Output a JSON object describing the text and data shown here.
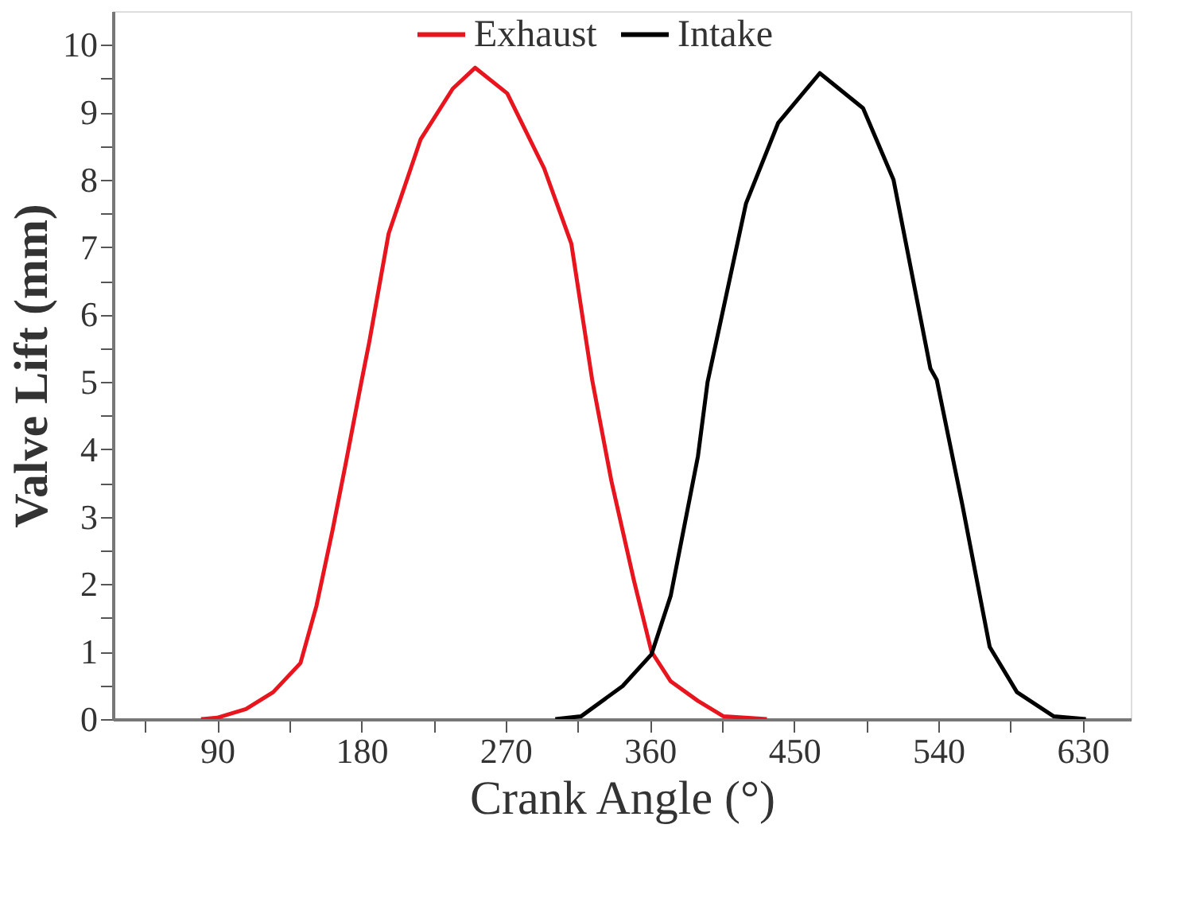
{
  "chart_data": {
    "type": "line",
    "xlabel": "Crank Angle (°)",
    "ylabel": "Valve Lift (mm)",
    "xlim": [
      25,
      660
    ],
    "ylim": [
      0,
      10.5
    ],
    "xticks": [
      {
        "value": 45,
        "label": null
      },
      90,
      {
        "value": 135,
        "label": null
      },
      180,
      {
        "value": 225,
        "label": null
      },
      270,
      {
        "value": 315,
        "label": null
      },
      360,
      {
        "value": 405,
        "label": null
      },
      450,
      {
        "value": 495,
        "label": null
      },
      540,
      {
        "value": 585,
        "label": null
      },
      630
    ],
    "yticks": [
      0,
      {
        "value": 0.5,
        "label": null
      },
      1,
      {
        "value": 1.5,
        "label": null
      },
      2,
      {
        "value": 2.5,
        "label": null
      },
      3,
      {
        "value": 3.5,
        "label": null
      },
      4,
      {
        "value": 4.5,
        "label": null
      },
      5,
      {
        "value": 5.5,
        "label": null
      },
      6,
      {
        "value": 6.5,
        "label": null
      },
      7,
      {
        "value": 7.5,
        "label": null
      },
      8,
      {
        "value": 8.5,
        "label": null
      },
      9,
      {
        "value": 9.5,
        "label": null
      },
      10
    ],
    "grid": false,
    "legend": "top",
    "marker": "none",
    "line_style": "solid",
    "series": [
      {
        "name": "Exhaust",
        "color": "#e8141e",
        "x": [
          80,
          90,
          108,
          125,
          142,
          152,
          162,
          170,
          180,
          185,
          197,
          217,
          237,
          251,
          271,
          294,
          311,
          324,
          336,
          350,
          361,
          373,
          390,
          406,
          433
        ],
        "values": [
          0,
          0.02,
          0.15,
          0.4,
          0.83,
          1.68,
          2.8,
          3.76,
          5.0,
          5.6,
          7.2,
          8.6,
          9.35,
          9.66,
          9.28,
          8.17,
          7.05,
          5.03,
          3.53,
          2.06,
          1.0,
          0.56,
          0.27,
          0.04,
          0
        ]
      },
      {
        "name": "Intake",
        "color": "#000000",
        "x": [
          301,
          317,
          343,
          361,
          373,
          390,
          396,
          420,
          440,
          466,
          493,
          512,
          535,
          539,
          555,
          572,
          589,
          612,
          632
        ],
        "values": [
          0,
          0.04,
          0.49,
          0.96,
          1.83,
          3.9,
          5.0,
          7.65,
          8.84,
          9.58,
          9.06,
          8.0,
          5.2,
          5.03,
          3.17,
          1.07,
          0.4,
          0.04,
          0
        ]
      }
    ]
  }
}
